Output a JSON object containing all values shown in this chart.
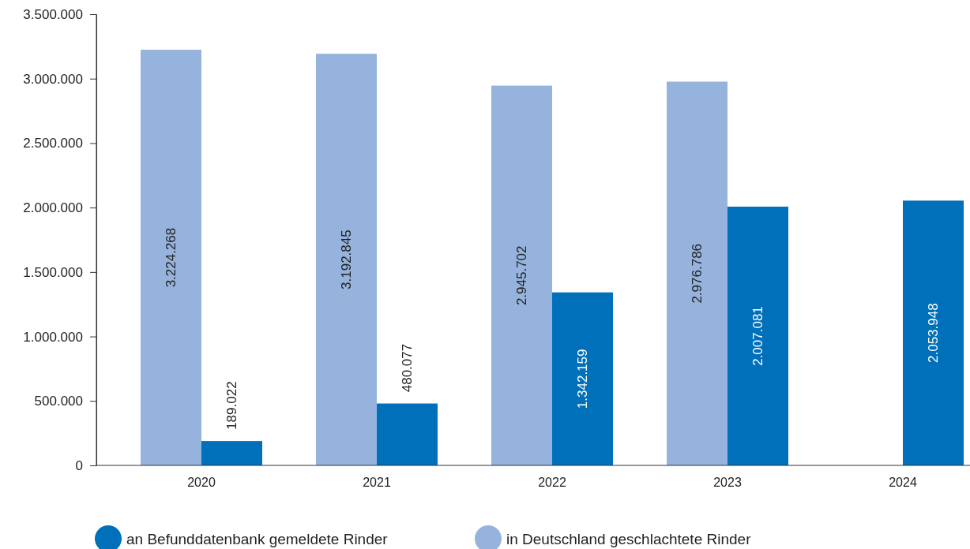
{
  "chart_data": {
    "type": "bar",
    "categories": [
      "2020",
      "2021",
      "2022",
      "2023",
      "2024"
    ],
    "series": [
      {
        "name": "in Deutschland geschlachtete Rinder",
        "color": "#95b3dc",
        "values": [
          3224268,
          3192845,
          2945702,
          2976786,
          null
        ],
        "value_labels": [
          "3.224.268",
          "3.192.845",
          "2.945.702",
          "2.976.786",
          null
        ]
      },
      {
        "name": "an Befunddatenbank gemeldete Rinder",
        "color": "#0070ba",
        "values": [
          189022,
          480077,
          1342159,
          2007081,
          2053948
        ],
        "value_labels": [
          "189.022",
          "480.077",
          "1.342.159",
          "2.007.081",
          "2.053.948"
        ]
      }
    ],
    "ylim": [
      0,
      3500000
    ],
    "yticks": [
      0,
      {
        "value": 500000,
        "label": "500.000"
      },
      {
        "value": 1000000,
        "label": "1.000.000"
      },
      {
        "value": 1500000,
        "label": "1.500.000"
      },
      {
        "value": 2000000,
        "label": "2.000.000"
      },
      {
        "value": 2500000,
        "label": "2.500.000"
      },
      {
        "value": 3000000,
        "label": "3.000.000"
      },
      {
        "value": 3500000,
        "label": "3.500.000"
      }
    ],
    "grid": false,
    "legend": "bottom"
  }
}
